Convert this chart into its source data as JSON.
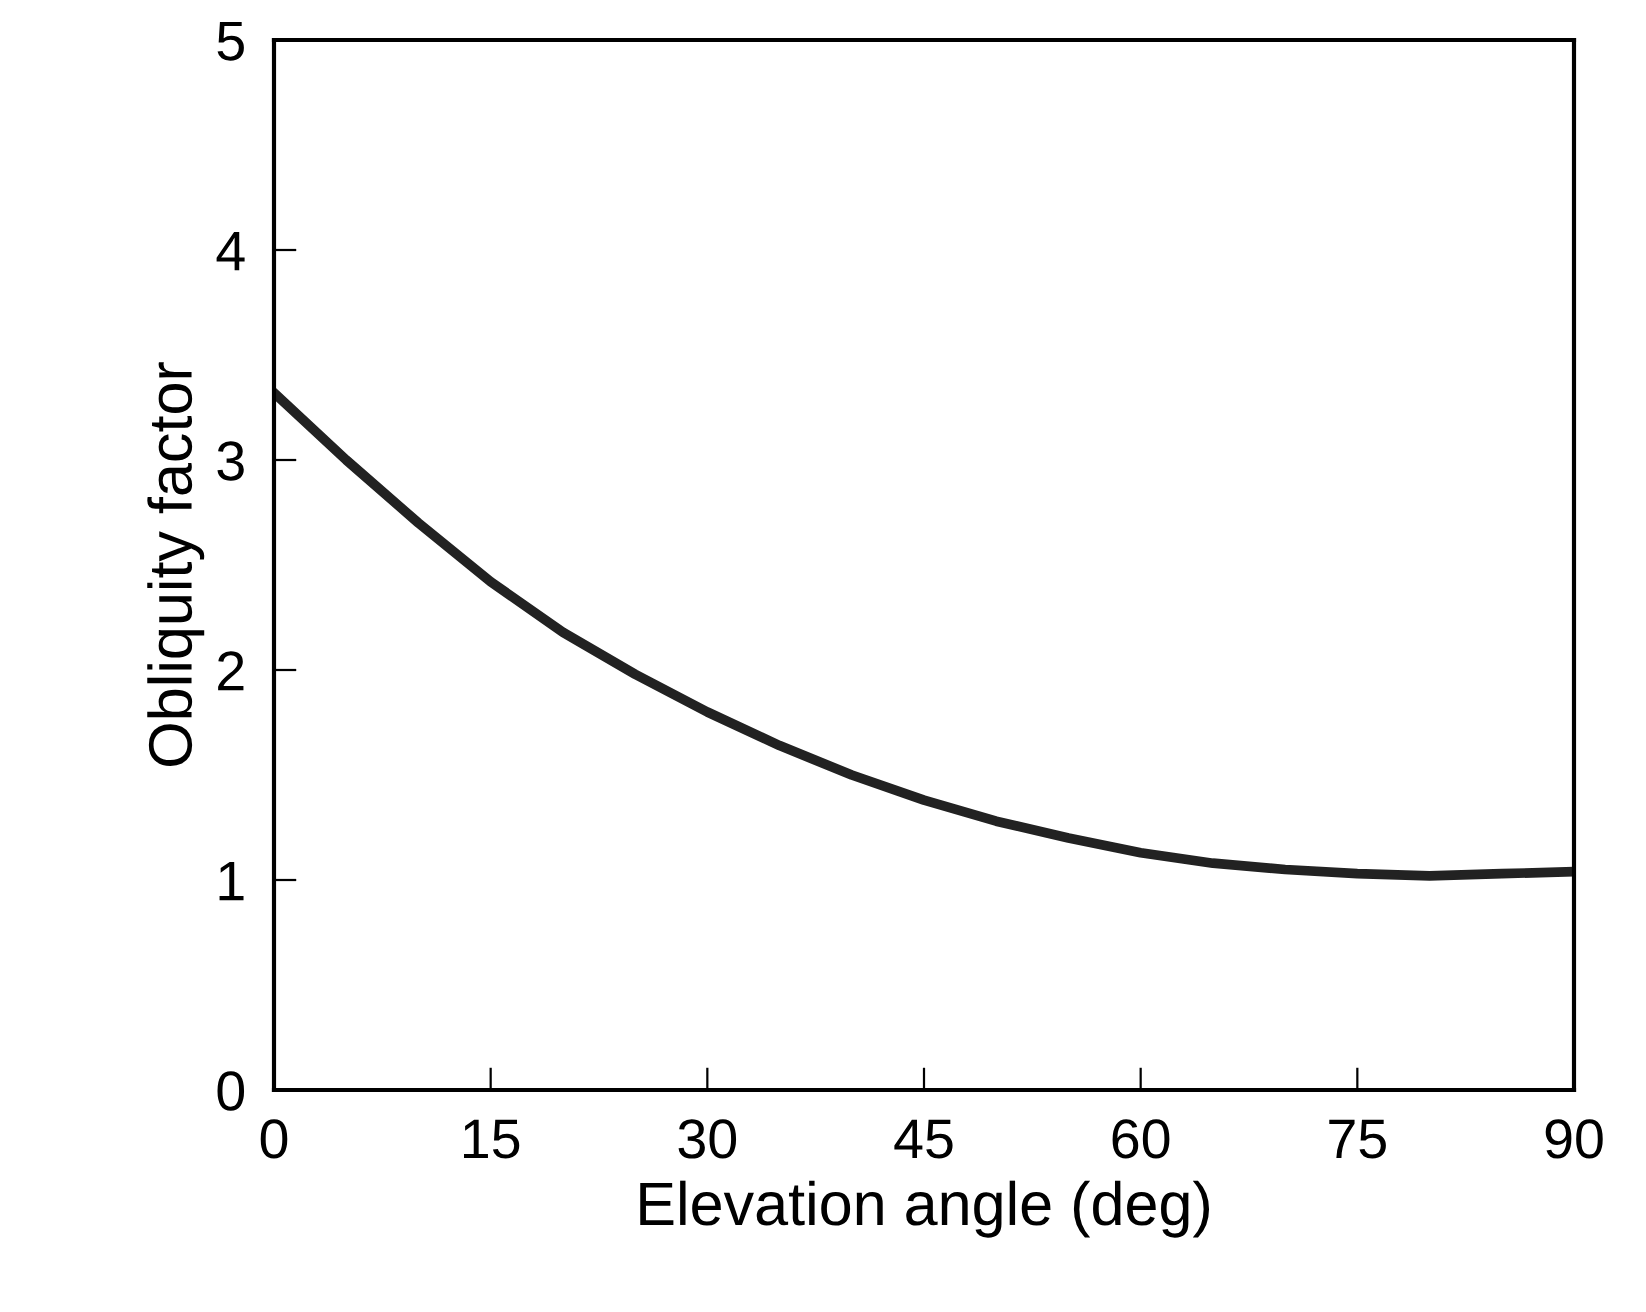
{
  "chart_data": {
    "type": "line",
    "xlabel": "Elevation angle (deg)",
    "ylabel": "Obliquity factor",
    "x": [
      0,
      5,
      10,
      15,
      20,
      25,
      30,
      35,
      40,
      45,
      50,
      55,
      60,
      65,
      70,
      75,
      80,
      85,
      90
    ],
    "series": [
      {
        "color": "#222222",
        "values": [
          3.32,
          3.0,
          2.7,
          2.42,
          2.18,
          1.98,
          1.8,
          1.64,
          1.5,
          1.38,
          1.28,
          1.2,
          1.13,
          1.08,
          1.05,
          1.03,
          1.02,
          1.03,
          1.04
        ]
      }
    ],
    "xlim": [
      0,
      90
    ],
    "xticks": [
      0,
      15,
      30,
      45,
      60,
      75,
      90
    ],
    "ylim": [
      0,
      5
    ],
    "yticks": [
      0,
      1,
      2,
      3,
      4,
      5
    ],
    "grid": false,
    "legend": false,
    "marker": "none",
    "line_style": "solid"
  }
}
